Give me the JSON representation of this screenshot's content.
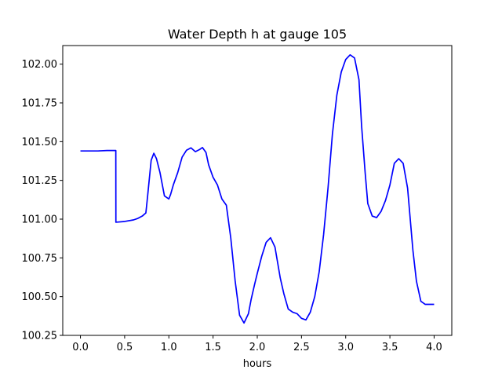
{
  "chart_data": {
    "type": "line",
    "title": "Water Depth h at gauge 105",
    "xlabel": "hours",
    "ylabel": "",
    "xlim": [
      -0.2,
      4.2
    ],
    "ylim": [
      100.25,
      102.12
    ],
    "grid": false,
    "legend": "none",
    "x_ticks": [
      0.0,
      0.5,
      1.0,
      1.5,
      2.0,
      2.5,
      3.0,
      3.5,
      4.0
    ],
    "x_tick_labels": [
      "0.0",
      "0.5",
      "1.0",
      "1.5",
      "2.0",
      "2.5",
      "3.0",
      "3.5",
      "4.0"
    ],
    "y_ticks": [
      100.25,
      100.5,
      100.75,
      101.0,
      101.25,
      101.5,
      101.75,
      102.0
    ],
    "y_tick_labels": [
      "100.25",
      "100.50",
      "100.75",
      "101.00",
      "101.25",
      "101.50",
      "101.75",
      "102.00"
    ],
    "series": [
      {
        "color": "#0000ff",
        "x": [
          0.0,
          0.1,
          0.2,
          0.3,
          0.4,
          0.401,
          0.5,
          0.6,
          0.65,
          0.7,
          0.74,
          0.76,
          0.8,
          0.83,
          0.86,
          0.9,
          0.95,
          1.0,
          1.02,
          1.05,
          1.1,
          1.15,
          1.2,
          1.25,
          1.3,
          1.35,
          1.38,
          1.42,
          1.45,
          1.5,
          1.55,
          1.6,
          1.65,
          1.7,
          1.75,
          1.8,
          1.85,
          1.9,
          1.93,
          1.97,
          2.0,
          2.05,
          2.1,
          2.15,
          2.2,
          2.23,
          2.26,
          2.3,
          2.35,
          2.4,
          2.45,
          2.5,
          2.55,
          2.6,
          2.65,
          2.7,
          2.75,
          2.8,
          2.85,
          2.9,
          2.95,
          3.0,
          3.05,
          3.1,
          3.15,
          3.18,
          3.22,
          3.25,
          3.3,
          3.35,
          3.4,
          3.45,
          3.5,
          3.55,
          3.6,
          3.65,
          3.7,
          3.73,
          3.76,
          3.8,
          3.85,
          3.9,
          3.95,
          4.0
        ],
        "y": [
          101.44,
          101.44,
          101.44,
          101.443,
          101.443,
          100.98,
          100.985,
          100.995,
          101.005,
          101.02,
          101.04,
          101.15,
          101.38,
          101.425,
          101.39,
          101.3,
          101.15,
          101.13,
          101.16,
          101.22,
          101.3,
          101.4,
          101.445,
          101.46,
          101.435,
          101.45,
          101.462,
          101.43,
          101.35,
          101.27,
          101.22,
          101.13,
          101.09,
          100.88,
          100.6,
          100.38,
          100.33,
          100.39,
          100.48,
          100.58,
          100.65,
          100.76,
          100.85,
          100.88,
          100.82,
          100.72,
          100.62,
          100.52,
          100.42,
          100.4,
          100.39,
          100.36,
          100.35,
          100.4,
          100.5,
          100.66,
          100.9,
          101.2,
          101.55,
          101.8,
          101.95,
          102.03,
          102.06,
          102.04,
          101.9,
          101.6,
          101.3,
          101.1,
          101.02,
          101.01,
          101.05,
          101.12,
          101.22,
          101.36,
          101.39,
          101.36,
          101.2,
          101.0,
          100.8,
          100.6,
          100.47,
          100.45,
          100.45,
          100.45
        ]
      }
    ]
  }
}
